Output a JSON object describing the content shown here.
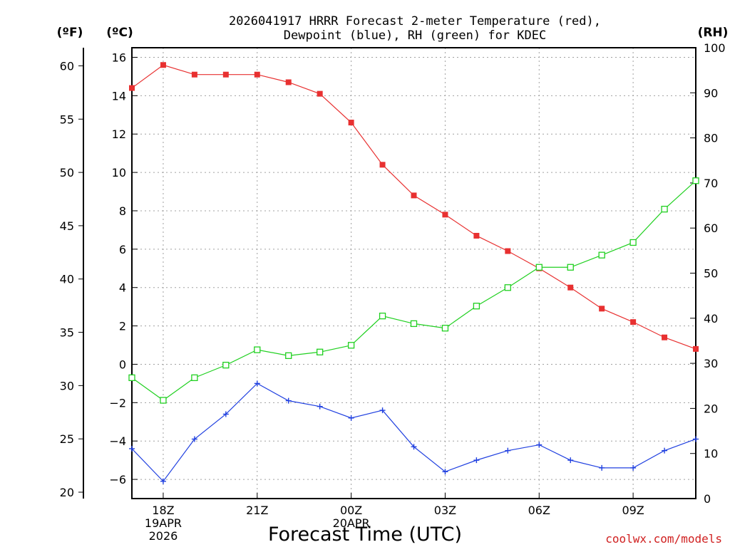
{
  "chart_data": {
    "type": "line",
    "title_line1": "2026041917 HRRR Forecast 2-meter Temperature (red),",
    "title_line2": "Dewpoint (blue), RH (green) for KDEC",
    "units": {
      "fahrenheit": "(ºF)",
      "celsius": "(ºC)",
      "rh": "(RH)"
    },
    "xlabel": "Forecast Time (UTC)",
    "credit": "coolwx.com/models",
    "x_hours": [
      17,
      18,
      19,
      20,
      21,
      22,
      23,
      24,
      25,
      26,
      27,
      28,
      29,
      30,
      31,
      32,
      33,
      34,
      35
    ],
    "xlim": [
      17,
      35
    ],
    "x_ticks": [
      {
        "hour": 18,
        "lines": [
          "18Z",
          "19APR",
          "2026"
        ]
      },
      {
        "hour": 21,
        "lines": [
          "21Z"
        ]
      },
      {
        "hour": 24,
        "lines": [
          "00Z",
          "20APR"
        ]
      },
      {
        "hour": 27,
        "lines": [
          "03Z"
        ]
      },
      {
        "hour": 30,
        "lines": [
          "06Z"
        ]
      },
      {
        "hour": 33,
        "lines": [
          "09Z"
        ]
      }
    ],
    "celsius_axis": {
      "ylim": [
        -7,
        16.5
      ],
      "ticks": [
        16,
        14,
        12,
        10,
        8,
        6,
        4,
        2,
        0,
        -2,
        -4,
        -6
      ],
      "tick_labels": [
        "16",
        "14",
        "12",
        "10",
        "8",
        "6",
        "4",
        "2",
        "0",
        "−2",
        "−4",
        "−6"
      ]
    },
    "fahrenheit_axis": {
      "ticks": [
        60,
        55,
        50,
        45,
        40,
        35,
        30,
        25,
        20
      ],
      "tick_labels": [
        "60",
        "55",
        "50",
        "45",
        "40",
        "35",
        "30",
        "25",
        "20"
      ]
    },
    "rh_axis": {
      "ylim": [
        0,
        100
      ],
      "ticks": [
        100,
        90,
        80,
        70,
        60,
        50,
        40,
        30,
        20,
        10,
        0
      ],
      "tick_labels": [
        "100",
        "90",
        "80",
        "70",
        "60",
        "50",
        "40",
        "30",
        "20",
        "10",
        "0"
      ]
    },
    "series": [
      {
        "name": "Temperature",
        "axis": "celsius",
        "color": "#e83030",
        "marker": "filled-square",
        "values": [
          14.4,
          15.6,
          15.1,
          15.1,
          15.1,
          14.7,
          14.1,
          12.6,
          10.4,
          8.8,
          7.8,
          6.7,
          5.9,
          5.0,
          4.0,
          2.9,
          2.2,
          1.4,
          0.8
        ]
      },
      {
        "name": "Dewpoint",
        "axis": "celsius",
        "color": "#2040e0",
        "marker": "plus",
        "values": [
          -4.4,
          -6.1,
          -3.9,
          -2.6,
          -1.0,
          -1.9,
          -2.2,
          -2.8,
          -2.4,
          -4.3,
          -5.6,
          -5.0,
          -4.5,
          -4.2,
          -5.0,
          -5.4,
          -5.4,
          -4.5,
          -3.9
        ]
      },
      {
        "name": "RH",
        "axis": "rh",
        "color": "#20d020",
        "marker": "open-square",
        "values": [
          26.8,
          21.8,
          26.8,
          29.6,
          33.0,
          31.7,
          32.5,
          34.0,
          40.5,
          38.8,
          37.8,
          42.7,
          46.8,
          51.3,
          51.3,
          54.0,
          56.8,
          64.2,
          70.5
        ]
      }
    ]
  }
}
